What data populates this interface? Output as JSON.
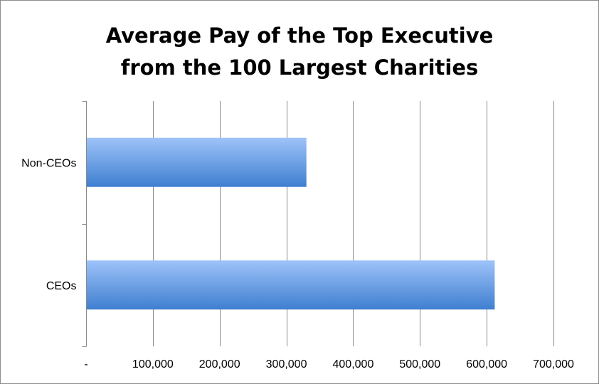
{
  "chart_data": {
    "type": "bar",
    "orientation": "horizontal",
    "title_lines": [
      "Average Pay of the Top Executive",
      "from the 100 Largest Charities"
    ],
    "categories": [
      "Non-CEOs",
      "CEOs"
    ],
    "values": [
      330000,
      612000
    ],
    "xlim": [
      0,
      700000
    ],
    "x_ticks": [
      0,
      100000,
      200000,
      300000,
      400000,
      500000,
      600000,
      700000
    ],
    "x_tick_labels": [
      "-",
      "100,000",
      "200,000",
      "300,000",
      "400,000",
      "500,000",
      "600,000",
      "700,000"
    ],
    "xlabel": "",
    "ylabel": "",
    "grid": "vertical",
    "legend": "none",
    "colors": {
      "bar_top": "#9ec3f9",
      "bar_bottom": "#3f7fd0",
      "grid": "#8a8a8a",
      "axis": "#8a8a8a",
      "text": "#000000"
    }
  }
}
